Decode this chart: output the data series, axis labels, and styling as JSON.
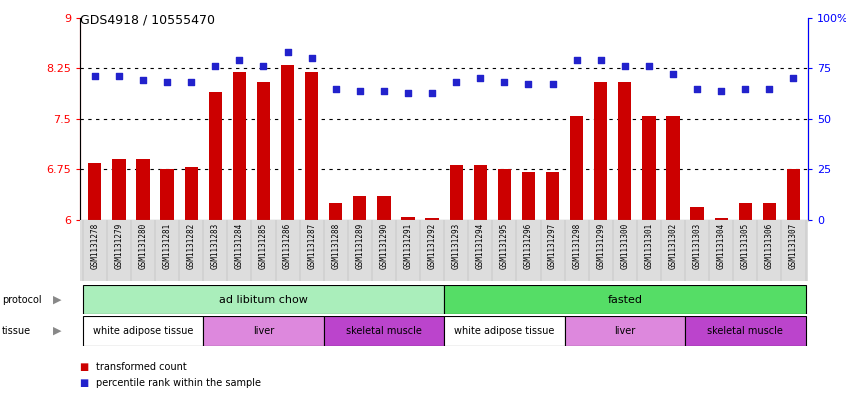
{
  "title": "GDS4918 / 10555470",
  "samples": [
    "GSM1131278",
    "GSM1131279",
    "GSM1131280",
    "GSM1131281",
    "GSM1131282",
    "GSM1131283",
    "GSM1131284",
    "GSM1131285",
    "GSM1131286",
    "GSM1131287",
    "GSM1131288",
    "GSM1131289",
    "GSM1131290",
    "GSM1131291",
    "GSM1131292",
    "GSM1131293",
    "GSM1131294",
    "GSM1131295",
    "GSM1131296",
    "GSM1131297",
    "GSM1131298",
    "GSM1131299",
    "GSM1131300",
    "GSM1131301",
    "GSM1131302",
    "GSM1131303",
    "GSM1131304",
    "GSM1131305",
    "GSM1131306",
    "GSM1131307"
  ],
  "bar_values": [
    6.85,
    6.9,
    6.9,
    6.75,
    6.78,
    7.9,
    8.2,
    8.05,
    8.3,
    8.2,
    6.25,
    6.35,
    6.35,
    6.05,
    6.03,
    6.82,
    6.82,
    6.75,
    6.72,
    6.72,
    7.55,
    8.05,
    8.05,
    7.55,
    7.55,
    6.2,
    6.03,
    6.25,
    6.25,
    6.75
  ],
  "percentile_values": [
    71,
    71,
    69,
    68,
    68,
    76,
    79,
    76,
    83,
    80,
    65,
    64,
    64,
    63,
    63,
    68,
    70,
    68,
    67,
    67,
    79,
    79,
    76,
    76,
    72,
    65,
    64,
    65,
    65,
    70
  ],
  "ylim_left": [
    6.0,
    9.0
  ],
  "ylim_right": [
    0,
    100
  ],
  "yticks_left": [
    6.0,
    6.75,
    7.5,
    8.25,
    9.0
  ],
  "ytick_labels_left": [
    "6",
    "6.75",
    "7.5",
    "8.25",
    "9"
  ],
  "yticks_right": [
    0,
    25,
    50,
    75,
    100
  ],
  "ytick_labels_right": [
    "0",
    "25",
    "50",
    "75",
    "100%"
  ],
  "bar_color": "#cc0000",
  "dot_color": "#2222cc",
  "protocols": [
    {
      "label": "ad libitum chow",
      "start": 0,
      "end": 14,
      "color": "#aaeebb"
    },
    {
      "label": "fasted",
      "start": 15,
      "end": 29,
      "color": "#55dd66"
    }
  ],
  "tissues": [
    {
      "label": "white adipose tissue",
      "start": 0,
      "end": 4,
      "color": "#ffffff"
    },
    {
      "label": "liver",
      "start": 5,
      "end": 9,
      "color": "#dd88dd"
    },
    {
      "label": "skeletal muscle",
      "start": 10,
      "end": 14,
      "color": "#bb44cc"
    },
    {
      "label": "white adipose tissue",
      "start": 15,
      "end": 19,
      "color": "#ffffff"
    },
    {
      "label": "liver",
      "start": 20,
      "end": 24,
      "color": "#dd88dd"
    },
    {
      "label": "skeletal muscle",
      "start": 25,
      "end": 29,
      "color": "#bb44cc"
    }
  ],
  "legend_items": [
    {
      "label": "transformed count",
      "color": "#cc0000"
    },
    {
      "label": "percentile rank within the sample",
      "color": "#2222cc"
    }
  ],
  "hline_values": [
    6.75,
    7.5,
    8.25
  ],
  "background_color": "#ffffff",
  "xticklabel_bg": "#dddddd"
}
